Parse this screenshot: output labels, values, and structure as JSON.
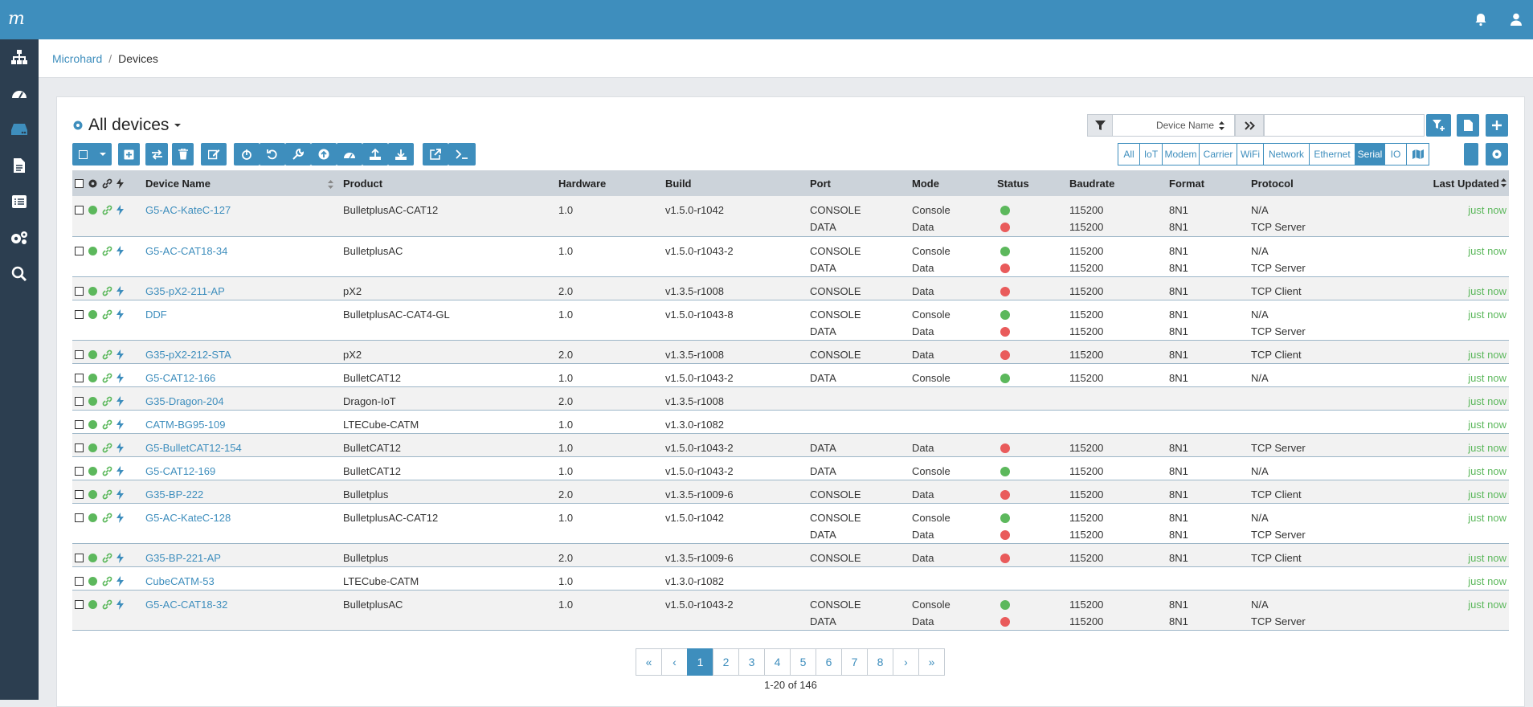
{
  "app": {
    "logo_text": "m"
  },
  "breadcrumb": {
    "root": "Microhard",
    "sep": "/",
    "current": "Devices"
  },
  "page": {
    "title": "All devices"
  },
  "search": {
    "field": "Device Name",
    "value": ""
  },
  "filters": [
    "All",
    "IoT",
    "Modem",
    "Carrier",
    "WiFi",
    "Network",
    "Ethernet",
    "Serial",
    "IO"
  ],
  "active_filter": "Serial",
  "columns": [
    "Device Name",
    "Product",
    "Hardware",
    "Build",
    "Port",
    "Mode",
    "Status",
    "Baudrate",
    "Format",
    "Protocol",
    "Last Updated"
  ],
  "colors": {
    "primary": "#3e8ebd",
    "sidebar": "#2c3e50",
    "ok": "#5cb85c",
    "error": "#e95b5b"
  },
  "rows": [
    {
      "name": "G5-AC-KateC-127",
      "product": "BulletplusAC-CAT12",
      "hardware": "1.0",
      "build": "v1.5.0-r1042",
      "updated": "just now",
      "ports": [
        {
          "port": "CONSOLE",
          "mode": "Console",
          "status": "ok",
          "baud": "115200",
          "format": "8N1",
          "protocol": "N/A"
        },
        {
          "port": "DATA",
          "mode": "Data",
          "status": "error",
          "baud": "115200",
          "format": "8N1",
          "protocol": "TCP Server"
        }
      ]
    },
    {
      "name": "G5-AC-CAT18-34",
      "product": "BulletplusAC",
      "hardware": "1.0",
      "build": "v1.5.0-r1043-2",
      "updated": "just now",
      "ports": [
        {
          "port": "CONSOLE",
          "mode": "Console",
          "status": "ok",
          "baud": "115200",
          "format": "8N1",
          "protocol": "N/A"
        },
        {
          "port": "DATA",
          "mode": "Data",
          "status": "error",
          "baud": "115200",
          "format": "8N1",
          "protocol": "TCP Server"
        }
      ]
    },
    {
      "name": "G35-pX2-211-AP",
      "product": "pX2",
      "hardware": "2.0",
      "build": "v1.3.5-r1008",
      "updated": "just now",
      "ports": [
        {
          "port": "CONSOLE",
          "mode": "Data",
          "status": "error",
          "baud": "115200",
          "format": "8N1",
          "protocol": "TCP Client"
        }
      ]
    },
    {
      "name": "DDF",
      "product": "BulletplusAC-CAT4-GL",
      "hardware": "1.0",
      "build": "v1.5.0-r1043-8",
      "updated": "just now",
      "ports": [
        {
          "port": "CONSOLE",
          "mode": "Console",
          "status": "ok",
          "baud": "115200",
          "format": "8N1",
          "protocol": "N/A"
        },
        {
          "port": "DATA",
          "mode": "Data",
          "status": "error",
          "baud": "115200",
          "format": "8N1",
          "protocol": "TCP Server"
        }
      ]
    },
    {
      "name": "G35-pX2-212-STA",
      "product": "pX2",
      "hardware": "2.0",
      "build": "v1.3.5-r1008",
      "updated": "just now",
      "ports": [
        {
          "port": "CONSOLE",
          "mode": "Data",
          "status": "error",
          "baud": "115200",
          "format": "8N1",
          "protocol": "TCP Client"
        }
      ]
    },
    {
      "name": "G5-CAT12-166",
      "product": "BulletCAT12",
      "hardware": "1.0",
      "build": "v1.5.0-r1043-2",
      "updated": "just now",
      "ports": [
        {
          "port": "DATA",
          "mode": "Console",
          "status": "ok",
          "baud": "115200",
          "format": "8N1",
          "protocol": "N/A"
        }
      ]
    },
    {
      "name": "G35-Dragon-204",
      "product": "Dragon-IoT",
      "hardware": "2.0",
      "build": "v1.3.5-r1008",
      "updated": "just now",
      "ports": []
    },
    {
      "name": "CATM-BG95-109",
      "product": "LTECube-CATM",
      "hardware": "1.0",
      "build": "v1.3.0-r1082",
      "updated": "just now",
      "ports": []
    },
    {
      "name": "G5-BulletCAT12-154",
      "product": "BulletCAT12",
      "hardware": "1.0",
      "build": "v1.5.0-r1043-2",
      "updated": "just now",
      "ports": [
        {
          "port": "DATA",
          "mode": "Data",
          "status": "error",
          "baud": "115200",
          "format": "8N1",
          "protocol": "TCP Server"
        }
      ]
    },
    {
      "name": "G5-CAT12-169",
      "product": "BulletCAT12",
      "hardware": "1.0",
      "build": "v1.5.0-r1043-2",
      "updated": "just now",
      "ports": [
        {
          "port": "DATA",
          "mode": "Console",
          "status": "ok",
          "baud": "115200",
          "format": "8N1",
          "protocol": "N/A"
        }
      ]
    },
    {
      "name": "G35-BP-222",
      "product": "Bulletplus",
      "hardware": "2.0",
      "build": "v1.3.5-r1009-6",
      "updated": "just now",
      "ports": [
        {
          "port": "CONSOLE",
          "mode": "Data",
          "status": "error",
          "baud": "115200",
          "format": "8N1",
          "protocol": "TCP Client"
        }
      ]
    },
    {
      "name": "G5-AC-KateC-128",
      "product": "BulletplusAC-CAT12",
      "hardware": "1.0",
      "build": "v1.5.0-r1042",
      "updated": "just now",
      "ports": [
        {
          "port": "CONSOLE",
          "mode": "Console",
          "status": "ok",
          "baud": "115200",
          "format": "8N1",
          "protocol": "N/A"
        },
        {
          "port": "DATA",
          "mode": "Data",
          "status": "error",
          "baud": "115200",
          "format": "8N1",
          "protocol": "TCP Server"
        }
      ]
    },
    {
      "name": "G35-BP-221-AP",
      "product": "Bulletplus",
      "hardware": "2.0",
      "build": "v1.3.5-r1009-6",
      "updated": "just now",
      "ports": [
        {
          "port": "CONSOLE",
          "mode": "Data",
          "status": "error",
          "baud": "115200",
          "format": "8N1",
          "protocol": "TCP Client"
        }
      ]
    },
    {
      "name": "CubeCATM-53",
      "product": "LTECube-CATM",
      "hardware": "1.0",
      "build": "v1.3.0-r1082",
      "updated": "just now",
      "ports": []
    },
    {
      "name": "G5-AC-CAT18-32",
      "product": "BulletplusAC",
      "hardware": "1.0",
      "build": "v1.5.0-r1043-2",
      "updated": "just now",
      "ports": [
        {
          "port": "CONSOLE",
          "mode": "Console",
          "status": "ok",
          "baud": "115200",
          "format": "8N1",
          "protocol": "N/A"
        },
        {
          "port": "DATA",
          "mode": "Data",
          "status": "error",
          "baud": "115200",
          "format": "8N1",
          "protocol": "TCP Server"
        }
      ]
    }
  ],
  "pagination": {
    "pages": [
      "«",
      "‹",
      "1",
      "2",
      "3",
      "4",
      "5",
      "6",
      "7",
      "8",
      "›",
      "»"
    ],
    "current": "1",
    "info": "1-20 of 146"
  }
}
